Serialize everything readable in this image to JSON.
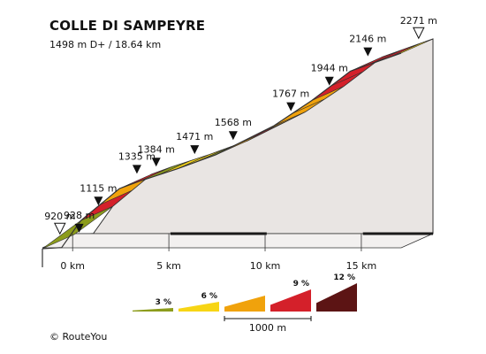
{
  "title": "COLLE DI SAMPEYRE",
  "subtitle": "1498 m D+ / 18.64 km",
  "credit": "© RouteYou",
  "chart_data": {
    "type": "area",
    "title": "COLLE DI SAMPEYRE",
    "subtitle": "1498 m D+ / 18.64 km",
    "x_unit": "km",
    "y_unit": "m",
    "xlim": [
      0,
      18.64
    ],
    "ylim": [
      920,
      2271
    ],
    "x_ticks": [
      {
        "km": 0,
        "label": "0 km"
      },
      {
        "km": 5,
        "label": "5 km"
      },
      {
        "km": 10,
        "label": "10 km"
      },
      {
        "km": 15,
        "label": "15 km"
      }
    ],
    "points": [
      {
        "km": 0.0,
        "alt": 920,
        "label": "920 m",
        "marker": "start"
      },
      {
        "km": 1.0,
        "alt": 928,
        "label": "928 m",
        "marker": "km"
      },
      {
        "km": 2.0,
        "alt": 1115,
        "label": "1115 m",
        "marker": "km"
      },
      {
        "km": 4.0,
        "alt": 1335,
        "label": "1335 m",
        "marker": "km"
      },
      {
        "km": 5.0,
        "alt": 1384,
        "label": "1384 m",
        "marker": "km"
      },
      {
        "km": 7.0,
        "alt": 1471,
        "label": "1471 m",
        "marker": "km"
      },
      {
        "km": 9.0,
        "alt": 1568,
        "label": "1568 m",
        "marker": "km"
      },
      {
        "km": 12.0,
        "alt": 1767,
        "label": "1767 m",
        "marker": "km"
      },
      {
        "km": 14.0,
        "alt": 1944,
        "label": "1944 m",
        "marker": "km"
      },
      {
        "km": 16.0,
        "alt": 2146,
        "label": "2146 m",
        "marker": "km"
      },
      {
        "km": 18.64,
        "alt": 2271,
        "label": "2271 m",
        "marker": "end"
      }
    ],
    "segments": [
      {
        "from_km": 0,
        "to_km": 2,
        "color": "#8c9c1c"
      },
      {
        "from_km": 2,
        "to_km": 3,
        "color": "#d4202a"
      },
      {
        "from_km": 3,
        "to_km": 4,
        "color": "#f0a20c"
      },
      {
        "from_km": 4,
        "to_km": 5,
        "color": "#d4202a"
      },
      {
        "from_km": 5,
        "to_km": 6,
        "color": "#8c9c1c"
      },
      {
        "from_km": 6,
        "to_km": 7,
        "color": "#f7d515"
      },
      {
        "from_km": 7,
        "to_km": 8,
        "color": "#f7d515"
      },
      {
        "from_km": 8,
        "to_km": 9,
        "color": "#8c9c1c"
      },
      {
        "from_km": 9,
        "to_km": 10,
        "color": "#f0a20c"
      },
      {
        "from_km": 10,
        "to_km": 11,
        "color": "#d4202a"
      },
      {
        "from_km": 11,
        "to_km": 12,
        "color": "#f0a20c"
      },
      {
        "from_km": 12,
        "to_km": 13,
        "color": "#f0a20c"
      },
      {
        "from_km": 13,
        "to_km": 14,
        "color": "#f0a20c"
      },
      {
        "from_km": 14,
        "to_km": 15,
        "color": "#d4202a"
      },
      {
        "from_km": 15,
        "to_km": 16,
        "color": "#d4202a"
      },
      {
        "from_km": 16,
        "to_km": 17,
        "color": "#d4202a"
      },
      {
        "from_km": 17,
        "to_km": 18,
        "color": "#d4202a"
      },
      {
        "from_km": 18,
        "to_km": 18.64,
        "color": "#f7d515"
      }
    ],
    "legend": {
      "scale_label": "1000 m",
      "items": [
        {
          "label": "3 %",
          "color": "#8c9c1c"
        },
        {
          "label": "6 %",
          "color": "#f7d515"
        },
        {
          "label": "",
          "color": "#f0a20c"
        },
        {
          "label": "9 %",
          "color": "#d4202a"
        },
        {
          "label": "12 %",
          "color": "#5c1414"
        }
      ]
    },
    "colors": {
      "side_face": "#e9e5e3",
      "outline": "#333333",
      "base_stripe": "#1a1a1a",
      "top_band": "#f7d515"
    }
  }
}
